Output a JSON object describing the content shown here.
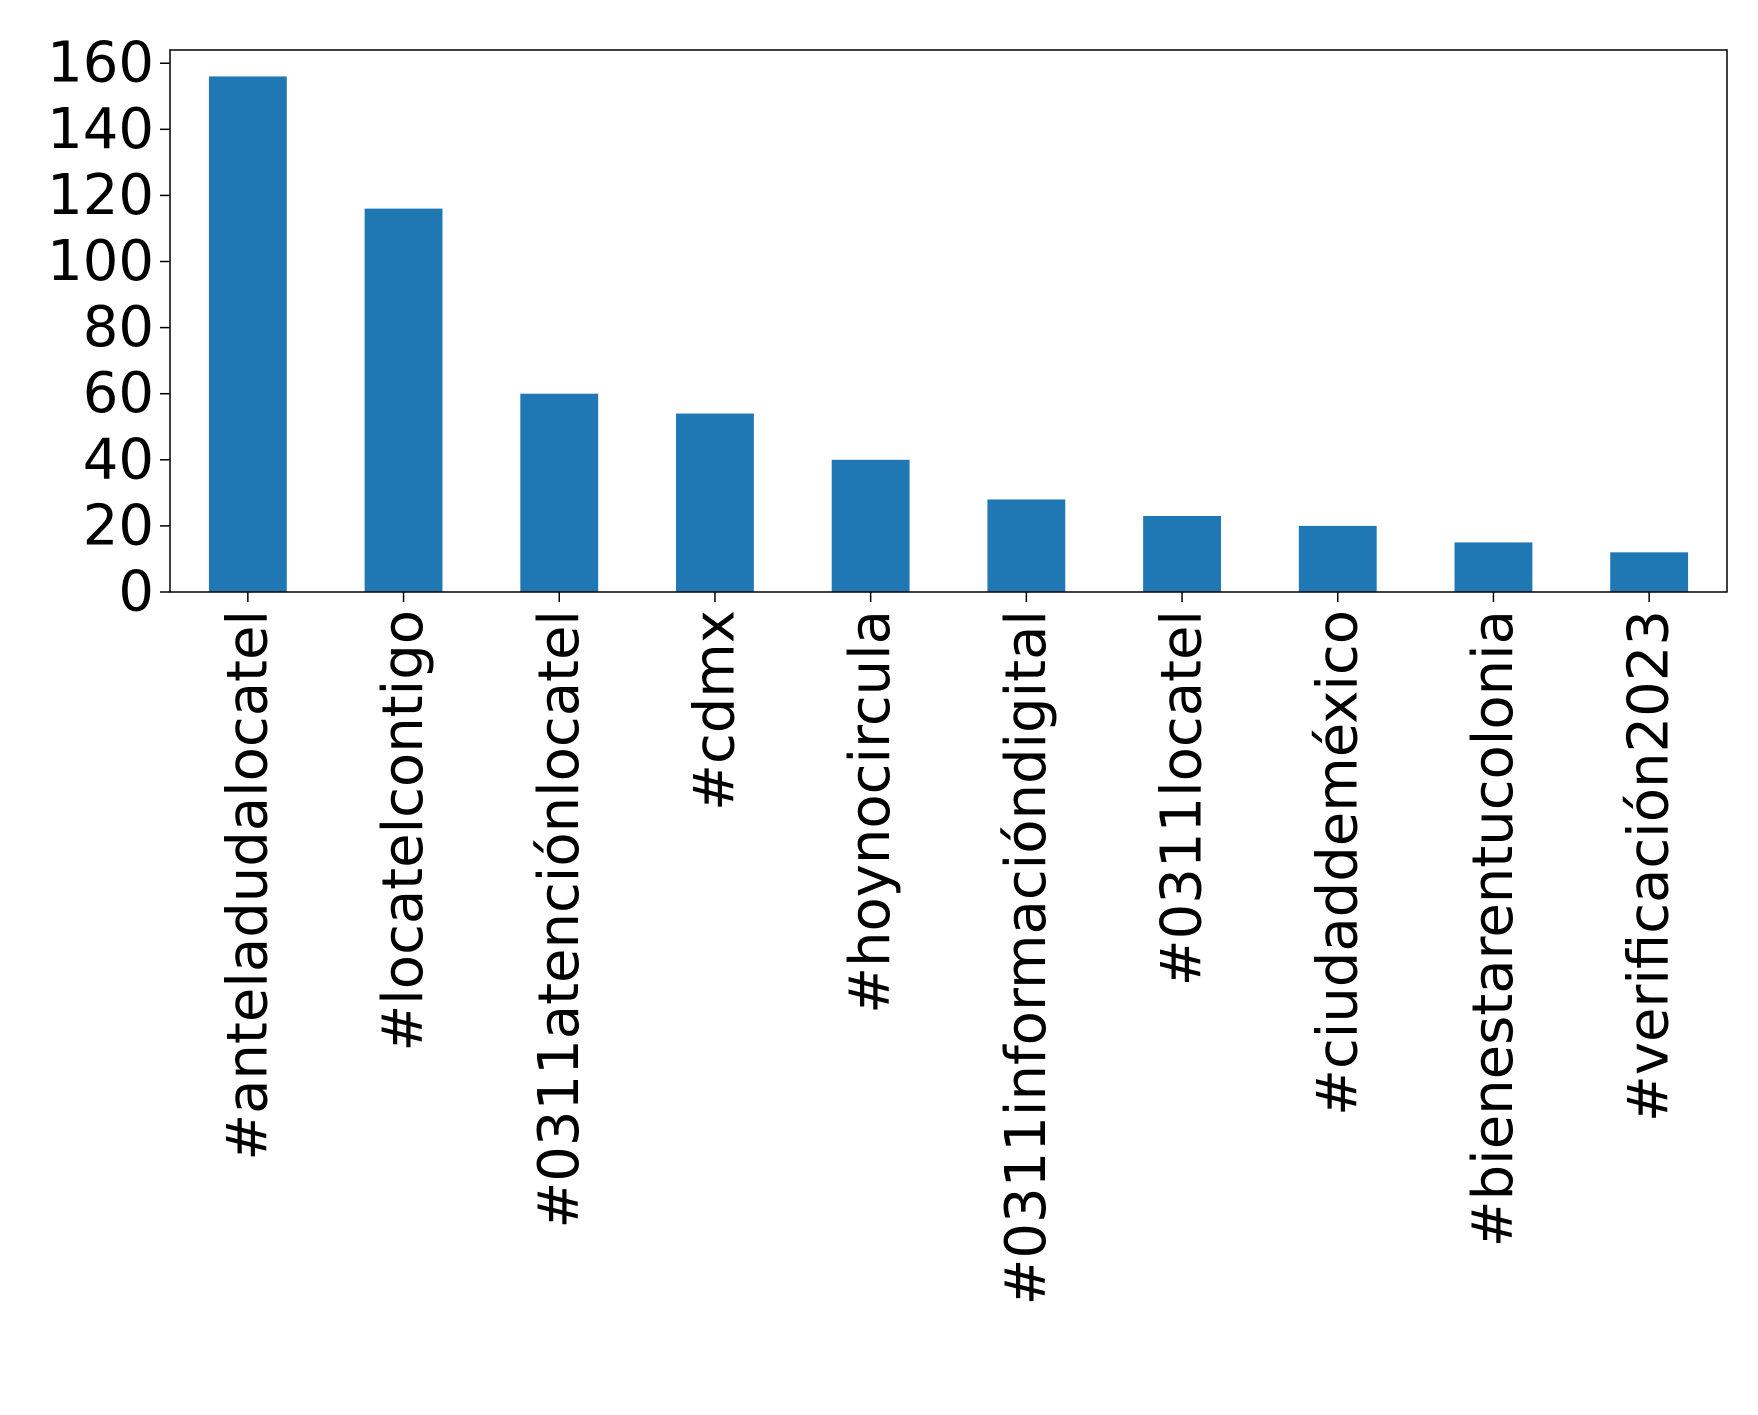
{
  "chart_data": {
    "type": "bar",
    "categories": [
      "#anteladudalocatel",
      "#locatelcontigo",
      "#0311atenciónlocatel",
      "#cdmx",
      "#hoynocircula",
      "#0311informacióndigital",
      "#0311locatel",
      "#ciudaddeméxico",
      "#bienestarentucolonia",
      "#verificación2023"
    ],
    "values": [
      156,
      116,
      60,
      54,
      40,
      28,
      23,
      20,
      15,
      12
    ],
    "ylim": [
      0,
      164
    ],
    "yticks": [
      0,
      20,
      40,
      60,
      80,
      100,
      120,
      140,
      160
    ],
    "bar_color": "#1f77b4",
    "grid": false,
    "legend": "none"
  }
}
